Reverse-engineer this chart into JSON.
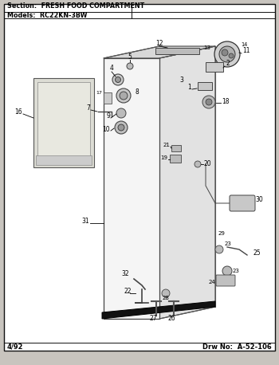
{
  "title_section": "Section:  FRESH FOOD COMPARTMENT",
  "title_model": "Models:  RC22KN-3BW",
  "footer_left": "4/92",
  "footer_right": "Drw No:  A-52-106",
  "page_bg": "#c8c4be",
  "box_bg": "#ffffff",
  "border_color": "#111111"
}
